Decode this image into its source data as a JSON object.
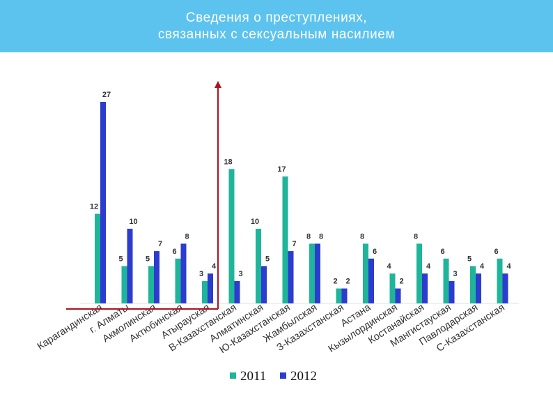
{
  "header": {
    "title_line1": "Сведения о преступлениях,",
    "title_line2": "связанных с сексуальным насилием"
  },
  "colors": {
    "header_bg": "#5cc3ef",
    "series_2011": "#1fb59a",
    "series_2012": "#2c3ccf",
    "highlight_frame": "#b01020"
  },
  "chart_data": {
    "type": "bar",
    "title": "Сведения о преступлениях, связанных с сексуальным насилием",
    "categories": [
      "Карагандинская",
      "г. Алматы",
      "Акмолинская",
      "Актюбинская",
      "Атырауская",
      "В-Казахстанская",
      "Алматинская",
      "Ю-Казахстанская",
      "Жамбылская",
      "З-Казахстанская",
      "Астана",
      "Кызылординская",
      "Костанайская",
      "Мангистауская",
      "Павлодарская",
      "С-Казахстанская"
    ],
    "series": [
      {
        "name": "2011",
        "values": [
          12,
          5,
          5,
          6,
          3,
          18,
          10,
          17,
          8,
          2,
          8,
          4,
          8,
          6,
          5,
          6
        ]
      },
      {
        "name": "2012",
        "values": [
          27,
          10,
          7,
          8,
          4,
          3,
          5,
          7,
          8,
          2,
          6,
          2,
          4,
          3,
          4,
          4
        ]
      }
    ],
    "ylim": [
      0,
      28
    ],
    "legend_position": "bottom",
    "grid": false
  }
}
